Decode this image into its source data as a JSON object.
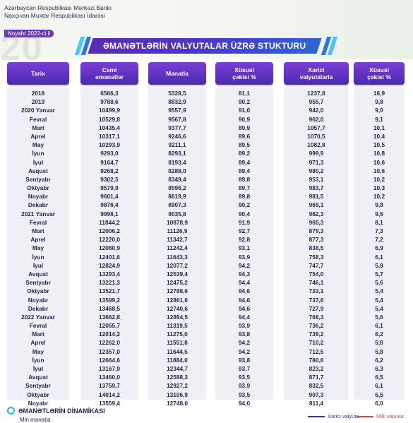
{
  "header": {
    "org_line1": "Azərbaycan Respublikası Mərkəzi Bankı",
    "org_line2": "Naxçıvan Muxtar Respublikası İdarəsi",
    "date_badge": "Noyabr 2022-ci il",
    "watermark": "20",
    "title": "ƏMANƏTLƏRİN VALYUTALAR ÜZRƏ STUKTURU"
  },
  "table": {
    "columns": [
      "Tarix",
      "Cəmi\nəmanətlər",
      "Manatla",
      "Xüsusi\nçəkisi %",
      "Xarici\nvalyutalarla",
      "Xüsusi\nçəkisi %"
    ],
    "rows": [
      [
        "2018",
        "6566,3",
        "5328,5",
        "81,1",
        "1237,8",
        "18,9"
      ],
      [
        "2019",
        "9788,6",
        "8832,9",
        "90,2",
        "955,7",
        "9,8"
      ],
      [
        "2020 Yanvar",
        "10499,9",
        "9557,9",
        "91,0",
        "942,0",
        "9,0"
      ],
      [
        "Fevral",
        "10529,8",
        "9567,8",
        "90,9",
        "962,0",
        "9,1"
      ],
      [
        "Mart",
        "10435,4",
        "9377,7",
        "89,9",
        "1057,7",
        "10,1"
      ],
      [
        "Aprel",
        "10317,1",
        "9246,6",
        "89,6",
        "1070,5",
        "10,4"
      ],
      [
        "May",
        "10293,9",
        "9211,1",
        "89,5",
        "1082,8",
        "10,5"
      ],
      [
        "İyun",
        "9293,0",
        "8293,1",
        "89,2",
        "999,9",
        "10,8"
      ],
      [
        "İyul",
        "9164,7",
        "8193,4",
        "89,4",
        "971,3",
        "10,6"
      ],
      [
        "Avqust",
        "9268,2",
        "8288,0",
        "89,4",
        "980,2",
        "10,6"
      ],
      [
        "Sentyabr",
        "9302,5",
        "8349,4",
        "89,8",
        "953,1",
        "10,2"
      ],
      [
        "Oktyabr",
        "9579,9",
        "8596,2",
        "89,7",
        "983,7",
        "10,3"
      ],
      [
        "Noyabr",
        "9601,4",
        "8619,9",
        "89,8",
        "981,5",
        "10,2"
      ],
      [
        "Dekabr",
        "9876,4",
        "8907,3",
        "90,2",
        "969,1",
        "9,8"
      ],
      [
        "2021 Yanvar",
        "9998,1",
        "9035,8",
        "90,4",
        "962,3",
        "9,6"
      ],
      [
        "Fevral",
        "11844,2",
        "10878,9",
        "91,9",
        "965,3",
        "8,1"
      ],
      [
        "Mart",
        "12006,2",
        "11126,9",
        "92,7",
        "879,3",
        "7,3"
      ],
      [
        "Aprel",
        "12220,0",
        "11342,7",
        "92,8",
        "877,3",
        "7,2"
      ],
      [
        "May",
        "12080,9",
        "11242,4",
        "93,1",
        "838,5",
        "6,9"
      ],
      [
        "İyun",
        "12401,6",
        "11643,3",
        "93,9",
        "758,3",
        "6,1"
      ],
      [
        "İyul",
        "12824,9",
        "12077,2",
        "94,2",
        "747,7",
        "5,8"
      ],
      [
        "Avqust",
        "13293,4",
        "12539,4",
        "94,3",
        "754,0",
        "5,7"
      ],
      [
        "Sentyabr",
        "13221,3",
        "12475,2",
        "94,4",
        "746,1",
        "5,6"
      ],
      [
        "Oktyabr",
        "13521,7",
        "12788,6",
        "94,6",
        "733,1",
        "5,4"
      ],
      [
        "Noyabr",
        "13599,2",
        "12861,6",
        "94,6",
        "737,6",
        "5,4"
      ],
      [
        "Dekabr",
        "13468,5",
        "12740,6",
        "94,6",
        "727,9",
        "5,4"
      ],
      [
        "2022 Yanvar",
        "13662,8",
        "12894,5",
        "94,4",
        "768,3",
        "5,6"
      ],
      [
        "Fevral",
        "12055,7",
        "11319,5",
        "93,9",
        "736,2",
        "6,1"
      ],
      [
        "Mart",
        "12014,2",
        "11275,0",
        "93,8",
        "739,2",
        "6,2"
      ],
      [
        "Aprel",
        "12262,0",
        "11551,8",
        "94,2",
        "710,2",
        "5,8"
      ],
      [
        "May",
        "12357,0",
        "11644,5",
        "94,2",
        "712,5",
        "5,8"
      ],
      [
        "İyun",
        "12664,6",
        "11884,0",
        "93,8",
        "780,6",
        "6,2"
      ],
      [
        "İyul",
        "13167,9",
        "12344,7",
        "93,7",
        "823,2",
        "6,3"
      ],
      [
        "Avqust",
        "13460,0",
        "12588,3",
        "93,5",
        "871,7",
        "6,5"
      ],
      [
        "Sentyabr",
        "13759,7",
        "12927,2",
        "93,9",
        "832,5",
        "6,1"
      ],
      [
        "Oktyabr",
        "14014,2",
        "13106,9",
        "93,5",
        "907,3",
        "6,5"
      ],
      [
        "Noyabr",
        "13559,4",
        "12748,0",
        "94,0",
        "811,4",
        "6,0"
      ]
    ]
  },
  "footer": {
    "section_title": "ƏMANƏTLƏRİN DİNAMİKASI",
    "unit": "Mln manatla",
    "legend_foreign": "Xarici valyuta",
    "legend_manat": "Milli valyuta",
    "legend_foreign_color": "#2d3a9c",
    "legend_manat_color": "#e0443f"
  },
  "colors": {
    "header_purple": "#5a2bb3",
    "header_blue": "#2e64d6",
    "accent_cyan": "#2ab4e8",
    "text_dark": "#1e2350",
    "column_background": "#eef0f6"
  }
}
